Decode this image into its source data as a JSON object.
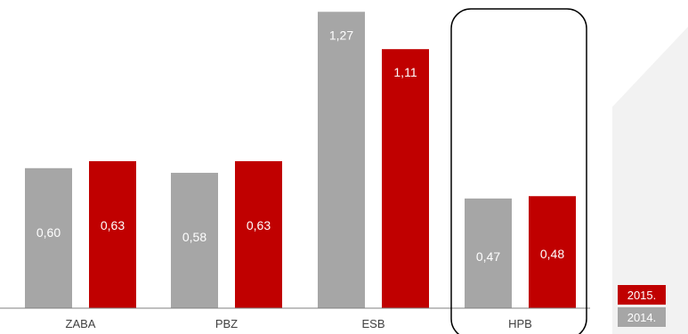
{
  "chart_data": {
    "type": "bar",
    "categories": [
      "ZABA",
      "PBZ",
      "ESB",
      "HPB"
    ],
    "series": [
      {
        "name": "2014.",
        "color": "#a6a6a6",
        "values": [
          0.6,
          0.58,
          1.27,
          0.47
        ]
      },
      {
        "name": "2015.",
        "color": "#c00000",
        "values": [
          0.63,
          0.63,
          1.11,
          0.48
        ]
      }
    ],
    "value_labels": {
      "2014.": [
        "0,60",
        "0,58",
        "1,27",
        "0,47"
      ],
      "2015.": [
        "0,63",
        "0,63",
        "1,11",
        "0,48"
      ]
    },
    "highlight_category": "HPB",
    "legend_position": "bottom-right",
    "legend_order": [
      "2015.",
      "2014."
    ],
    "ylim": [
      0,
      1.3
    ],
    "grid": false,
    "title": "",
    "xlabel": "",
    "ylabel": ""
  },
  "decor": {
    "panel_color": "#f2f2f2",
    "axis_color": "#808080",
    "highlight_border": "#000000"
  }
}
